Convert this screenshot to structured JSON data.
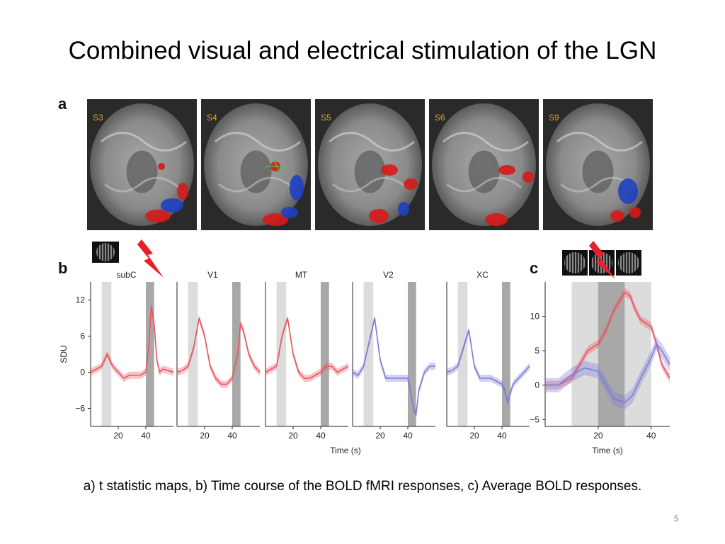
{
  "slide": {
    "title": "Combined visual and electrical stimulation of the LGN",
    "caption": "a) t statistic maps, b) Time course of the BOLD fMRI responses, c) Average BOLD responses.",
    "page_number": "5"
  },
  "figure": {
    "panel_letters": [
      "a",
      "b",
      "c"
    ],
    "brain_slices": [
      "S3",
      "S4",
      "S5",
      "S6",
      "S9"
    ]
  },
  "chart_data": [
    {
      "type": "line",
      "panel": "b",
      "ylabel": "SDU",
      "xlabel": "Time (s)",
      "xlim": [
        0,
        60
      ],
      "ylim": [
        -9,
        15
      ],
      "yticks": [
        -6,
        0,
        6,
        12
      ],
      "xticks": [
        20,
        40
      ],
      "subplots": [
        {
          "label": "subC",
          "color": "#e8555f",
          "x": [
            0,
            4,
            8,
            12,
            16,
            20,
            24,
            28,
            32,
            36,
            40,
            42,
            44,
            46,
            48,
            50,
            52,
            56,
            60
          ],
          "values": [
            0,
            0.5,
            1,
            3,
            1,
            0,
            -1,
            -0.5,
            -0.5,
            -0.5,
            0,
            4,
            11,
            8,
            2,
            0,
            0.5,
            0.3,
            0
          ],
          "shade_visual": [
            8,
            15
          ],
          "shade_electrical": [
            40,
            46
          ]
        },
        {
          "label": "V1",
          "color": "#e8555f",
          "x": [
            0,
            4,
            8,
            12,
            16,
            20,
            24,
            28,
            32,
            36,
            40,
            44,
            46,
            48,
            52,
            56,
            60
          ],
          "values": [
            0,
            0.3,
            1,
            4,
            9,
            6,
            1,
            -1,
            -2,
            -2,
            -1,
            3,
            8,
            7,
            3,
            1,
            0
          ],
          "shade_visual": [
            8,
            15
          ],
          "shade_electrical": [
            40,
            46
          ]
        },
        {
          "label": "MT",
          "color": "#e8555f",
          "x": [
            0,
            4,
            8,
            12,
            16,
            20,
            24,
            28,
            32,
            36,
            40,
            44,
            48,
            52,
            56,
            60
          ],
          "values": [
            0,
            0.5,
            1,
            6,
            9,
            3,
            0,
            -1,
            -1,
            -0.5,
            0,
            1,
            1,
            0,
            0.5,
            1
          ],
          "shade_visual": [
            8,
            15
          ],
          "shade_electrical": [
            40,
            46
          ]
        },
        {
          "label": "V2",
          "color": "#7b7bd6",
          "x": [
            0,
            4,
            8,
            12,
            16,
            20,
            24,
            28,
            32,
            36,
            40,
            42,
            44,
            46,
            48,
            52,
            56,
            60
          ],
          "values": [
            0,
            -0.5,
            1,
            5,
            9,
            2,
            -1,
            -1,
            -1,
            -1,
            -1,
            -3,
            -6,
            -7,
            -3,
            0,
            1,
            1
          ],
          "shade_visual": [
            8,
            15
          ],
          "shade_electrical": [
            40,
            46
          ]
        },
        {
          "label": "XC",
          "color": "#7b7bd6",
          "x": [
            0,
            4,
            8,
            12,
            16,
            20,
            24,
            28,
            32,
            36,
            40,
            42,
            44,
            48,
            52,
            56,
            60
          ],
          "values": [
            0,
            0.3,
            1,
            4,
            7,
            1,
            -1,
            -1,
            -1,
            -1.5,
            -2,
            -3,
            -5,
            -2,
            -1,
            0,
            1
          ],
          "shade_visual": [
            8,
            15
          ],
          "shade_electrical": [
            40,
            46
          ]
        }
      ]
    },
    {
      "type": "line",
      "panel": "c",
      "xlabel": "Time (s)",
      "xlim": [
        0,
        47
      ],
      "ylim": [
        -6,
        15
      ],
      "yticks": [
        -5,
        0,
        5,
        10
      ],
      "xticks": [
        20,
        40
      ],
      "shade_light": [
        10,
        40
      ],
      "shade_dark": [
        20,
        30
      ],
      "series": [
        {
          "color": "#e8555f",
          "x": [
            0,
            5,
            10,
            13,
            16,
            20,
            23,
            26,
            30,
            32,
            34,
            36,
            38,
            40,
            42,
            44,
            47
          ],
          "values": [
            0,
            0,
            1,
            3,
            5,
            6,
            8,
            11,
            13.5,
            13,
            11,
            9.5,
            9,
            8.5,
            6,
            3,
            1
          ]
        },
        {
          "color": "#7b7bd6",
          "x": [
            0,
            5,
            10,
            15,
            20,
            23,
            26,
            30,
            33,
            36,
            40,
            42,
            44,
            47
          ],
          "values": [
            0,
            0,
            1.5,
            2.5,
            2,
            0,
            -2,
            -2.5,
            -1.5,
            1,
            4,
            6,
            5,
            3
          ]
        }
      ]
    }
  ]
}
